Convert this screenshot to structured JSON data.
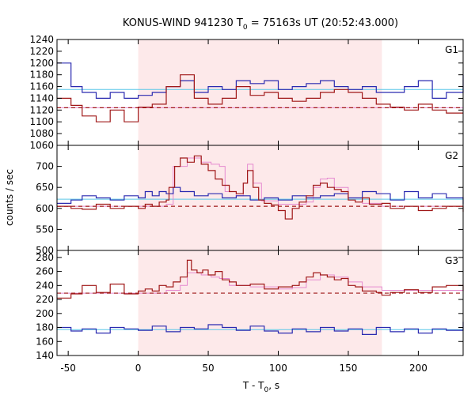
{
  "chart_data": {
    "type": "line",
    "title": {
      "prefix": "KONUS-WIND 941230 T",
      "sub": "0",
      "suffix": " = 75163s UT (20:52:43.000)"
    },
    "xlabel": {
      "prefix": "T - T",
      "sub": "0",
      "suffix": ", s"
    },
    "ylabel": "counts / sec",
    "xlim": [
      -58,
      232
    ],
    "x_ticks": [
      -50,
      0,
      50,
      100,
      150,
      200
    ],
    "x_tick_labels": [
      "-50",
      "0",
      "50",
      "100",
      "150",
      "200"
    ],
    "shaded_interval": [
      0,
      174
    ],
    "colors": {
      "shade": "#fde9ea",
      "red": "#a01818",
      "blue": "#2a2ab0",
      "pink": "#e58ad0",
      "cyan": "#5bc8e8"
    },
    "panels": [
      {
        "label": "G1",
        "ylim": [
          1060,
          1240
        ],
        "y_ticks": [
          1060,
          1080,
          1100,
          1120,
          1140,
          1160,
          1180,
          1200,
          1220,
          1240
        ],
        "y_tick_labels": [
          "1060",
          "1080",
          "1100",
          "1120",
          "1140",
          "1160",
          "1180",
          "1200",
          "1220",
          "1240"
        ],
        "red_background": 1124,
        "blue_background": 1155,
        "pink_model": [
          [
            -58,
            1124
          ],
          [
            232,
            1124
          ]
        ],
        "red_series": [
          [
            -58,
            1140
          ],
          [
            -48,
            1128
          ],
          [
            -40,
            1110
          ],
          [
            -30,
            1100
          ],
          [
            -20,
            1120
          ],
          [
            -10,
            1100
          ],
          [
            0,
            1125
          ],
          [
            10,
            1130
          ],
          [
            20,
            1160
          ],
          [
            30,
            1180
          ],
          [
            40,
            1140
          ],
          [
            50,
            1130
          ],
          [
            60,
            1140
          ],
          [
            70,
            1160
          ],
          [
            80,
            1145
          ],
          [
            90,
            1150
          ],
          [
            100,
            1140
          ],
          [
            110,
            1135
          ],
          [
            120,
            1140
          ],
          [
            130,
            1150
          ],
          [
            140,
            1155
          ],
          [
            150,
            1150
          ],
          [
            160,
            1140
          ],
          [
            170,
            1130
          ],
          [
            180,
            1125
          ],
          [
            190,
            1120
          ],
          [
            200,
            1130
          ],
          [
            210,
            1120
          ],
          [
            220,
            1115
          ],
          [
            232,
            1115
          ]
        ],
        "blue_series": [
          [
            -58,
            1200
          ],
          [
            -48,
            1160
          ],
          [
            -40,
            1150
          ],
          [
            -30,
            1140
          ],
          [
            -20,
            1150
          ],
          [
            -10,
            1140
          ],
          [
            0,
            1145
          ],
          [
            10,
            1150
          ],
          [
            20,
            1160
          ],
          [
            30,
            1170
          ],
          [
            40,
            1150
          ],
          [
            50,
            1160
          ],
          [
            60,
            1155
          ],
          [
            70,
            1170
          ],
          [
            80,
            1165
          ],
          [
            90,
            1170
          ],
          [
            100,
            1155
          ],
          [
            110,
            1160
          ],
          [
            120,
            1165
          ],
          [
            130,
            1170
          ],
          [
            140,
            1160
          ],
          [
            150,
            1155
          ],
          [
            160,
            1160
          ],
          [
            170,
            1150
          ],
          [
            180,
            1150
          ],
          [
            190,
            1160
          ],
          [
            200,
            1170
          ],
          [
            210,
            1140
          ],
          [
            220,
            1150
          ],
          [
            232,
            1180
          ]
        ]
      },
      {
        "label": "G2",
        "ylim": [
          500,
          750
        ],
        "y_ticks": [
          500,
          550,
          600,
          650,
          700
        ],
        "y_tick_labels": [
          "500",
          "550",
          "600",
          "650",
          "700"
        ],
        "red_background": 605,
        "blue_background": 622,
        "pink_model": [
          [
            -58,
            605
          ],
          [
            0,
            605
          ],
          [
            20,
            610
          ],
          [
            25,
            700
          ],
          [
            35,
            720
          ],
          [
            45,
            710
          ],
          [
            52,
            705
          ],
          [
            58,
            700
          ],
          [
            62,
            640
          ],
          [
            70,
            630
          ],
          [
            75,
            660
          ],
          [
            78,
            705
          ],
          [
            82,
            660
          ],
          [
            88,
            618
          ],
          [
            100,
            610
          ],
          [
            110,
            610
          ],
          [
            120,
            615
          ],
          [
            125,
            650
          ],
          [
            130,
            670
          ],
          [
            135,
            672
          ],
          [
            140,
            650
          ],
          [
            150,
            625
          ],
          [
            160,
            612
          ],
          [
            174,
            605
          ],
          [
            232,
            605
          ]
        ],
        "red_series": [
          [
            -58,
            605
          ],
          [
            -48,
            600
          ],
          [
            -40,
            598
          ],
          [
            -30,
            610
          ],
          [
            -20,
            600
          ],
          [
            -10,
            605
          ],
          [
            0,
            600
          ],
          [
            5,
            610
          ],
          [
            10,
            605
          ],
          [
            15,
            615
          ],
          [
            20,
            620
          ],
          [
            22,
            650
          ],
          [
            26,
            700
          ],
          [
            30,
            720
          ],
          [
            35,
            710
          ],
          [
            40,
            725
          ],
          [
            45,
            705
          ],
          [
            50,
            690
          ],
          [
            55,
            670
          ],
          [
            60,
            655
          ],
          [
            65,
            640
          ],
          [
            70,
            635
          ],
          [
            75,
            660
          ],
          [
            78,
            690
          ],
          [
            82,
            650
          ],
          [
            86,
            620
          ],
          [
            90,
            612
          ],
          [
            95,
            608
          ],
          [
            100,
            595
          ],
          [
            105,
            575
          ],
          [
            110,
            600
          ],
          [
            115,
            615
          ],
          [
            120,
            630
          ],
          [
            125,
            655
          ],
          [
            130,
            660
          ],
          [
            135,
            650
          ],
          [
            140,
            645
          ],
          [
            145,
            640
          ],
          [
            150,
            620
          ],
          [
            155,
            615
          ],
          [
            160,
            625
          ],
          [
            165,
            610
          ],
          [
            174,
            612
          ],
          [
            180,
            600
          ],
          [
            190,
            605
          ],
          [
            200,
            595
          ],
          [
            210,
            600
          ],
          [
            220,
            605
          ],
          [
            232,
            592
          ]
        ],
        "blue_series": [
          [
            -58,
            612
          ],
          [
            -48,
            620
          ],
          [
            -40,
            630
          ],
          [
            -30,
            625
          ],
          [
            -20,
            620
          ],
          [
            -10,
            630
          ],
          [
            0,
            625
          ],
          [
            5,
            640
          ],
          [
            10,
            630
          ],
          [
            15,
            640
          ],
          [
            20,
            635
          ],
          [
            25,
            650
          ],
          [
            30,
            640
          ],
          [
            40,
            630
          ],
          [
            50,
            635
          ],
          [
            60,
            625
          ],
          [
            70,
            630
          ],
          [
            80,
            620
          ],
          [
            90,
            625
          ],
          [
            100,
            620
          ],
          [
            110,
            630
          ],
          [
            120,
            625
          ],
          [
            130,
            630
          ],
          [
            140,
            635
          ],
          [
            150,
            625
          ],
          [
            160,
            640
          ],
          [
            170,
            635
          ],
          [
            180,
            620
          ],
          [
            190,
            640
          ],
          [
            200,
            625
          ],
          [
            210,
            635
          ],
          [
            220,
            625
          ],
          [
            232,
            610
          ]
        ]
      },
      {
        "label": "G3",
        "ylim": [
          140,
          290
        ],
        "y_ticks": [
          140,
          160,
          180,
          200,
          220,
          240,
          260,
          280
        ],
        "y_tick_labels": [
          "140",
          "160",
          "180",
          "200",
          "220",
          "240",
          "260",
          "280"
        ],
        "red_background": 229,
        "blue_background": 177,
        "pink_model": [
          [
            -58,
            229
          ],
          [
            0,
            229
          ],
          [
            20,
            233
          ],
          [
            30,
            240
          ],
          [
            35,
            258
          ],
          [
            45,
            255
          ],
          [
            52,
            252
          ],
          [
            58,
            250
          ],
          [
            65,
            240
          ],
          [
            80,
            238
          ],
          [
            100,
            235
          ],
          [
            110,
            237
          ],
          [
            120,
            248
          ],
          [
            130,
            255
          ],
          [
            140,
            252
          ],
          [
            150,
            245
          ],
          [
            160,
            238
          ],
          [
            174,
            233
          ],
          [
            232,
            230
          ]
        ],
        "red_series": [
          [
            -58,
            222
          ],
          [
            -48,
            228
          ],
          [
            -40,
            240
          ],
          [
            -30,
            230
          ],
          [
            -20,
            242
          ],
          [
            -10,
            228
          ],
          [
            0,
            232
          ],
          [
            5,
            235
          ],
          [
            10,
            232
          ],
          [
            15,
            240
          ],
          [
            20,
            238
          ],
          [
            25,
            245
          ],
          [
            30,
            252
          ],
          [
            35,
            276
          ],
          [
            38,
            262
          ],
          [
            42,
            258
          ],
          [
            46,
            262
          ],
          [
            50,
            255
          ],
          [
            55,
            260
          ],
          [
            60,
            248
          ],
          [
            65,
            245
          ],
          [
            70,
            240
          ],
          [
            80,
            242
          ],
          [
            90,
            235
          ],
          [
            100,
            238
          ],
          [
            110,
            240
          ],
          [
            115,
            245
          ],
          [
            120,
            252
          ],
          [
            125,
            258
          ],
          [
            130,
            255
          ],
          [
            135,
            252
          ],
          [
            140,
            248
          ],
          [
            145,
            250
          ],
          [
            150,
            240
          ],
          [
            155,
            238
          ],
          [
            160,
            232
          ],
          [
            170,
            230
          ],
          [
            174,
            226
          ],
          [
            180,
            230
          ],
          [
            190,
            234
          ],
          [
            200,
            230
          ],
          [
            210,
            238
          ],
          [
            220,
            240
          ],
          [
            232,
            232
          ]
        ],
        "blue_series": [
          [
            -58,
            180
          ],
          [
            -48,
            175
          ],
          [
            -40,
            178
          ],
          [
            -30,
            172
          ],
          [
            -20,
            180
          ],
          [
            -10,
            178
          ],
          [
            0,
            176
          ],
          [
            10,
            182
          ],
          [
            20,
            174
          ],
          [
            30,
            180
          ],
          [
            40,
            178
          ],
          [
            50,
            184
          ],
          [
            60,
            180
          ],
          [
            70,
            176
          ],
          [
            80,
            182
          ],
          [
            90,
            175
          ],
          [
            100,
            172
          ],
          [
            110,
            178
          ],
          [
            120,
            174
          ],
          [
            130,
            180
          ],
          [
            140,
            175
          ],
          [
            150,
            178
          ],
          [
            160,
            170
          ],
          [
            170,
            180
          ],
          [
            180,
            174
          ],
          [
            190,
            178
          ],
          [
            200,
            172
          ],
          [
            210,
            178
          ],
          [
            220,
            176
          ],
          [
            232,
            188
          ]
        ]
      }
    ]
  }
}
